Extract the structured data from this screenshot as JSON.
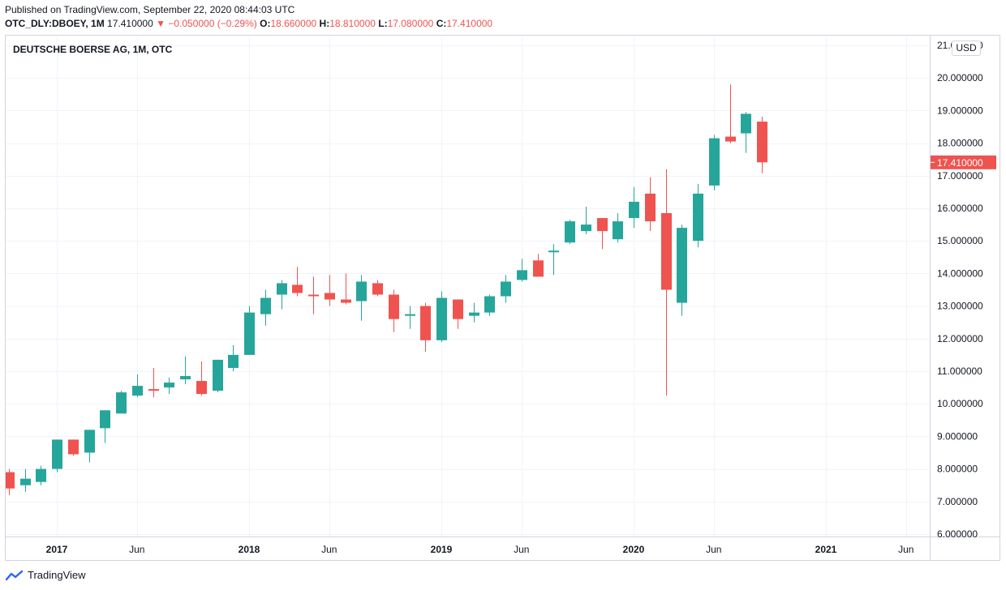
{
  "published": "Published on TradingView.com, September 22, 2020 08:44:03 UTC",
  "header": {
    "symbol": "OTC_DLY:DBOEY,",
    "interval": "1M",
    "last": "17.410000",
    "change": "▼ −0.050000 (−0.29%)",
    "o_label": "O:",
    "o": "18.660000",
    "h_label": "H:",
    "h": "18.810000",
    "l_label": "L:",
    "l": "17.080000",
    "c_label": "C:",
    "c": "17.410000"
  },
  "currency": "USD",
  "brand": "TradingView",
  "colors": {
    "up": "#26a69a",
    "down": "#ef5350",
    "grid": "#f0f3fa",
    "text": "#131722"
  },
  "chart_data": {
    "type": "candlestick",
    "title": "DEUTSCHE BOERSE AG, 1M, OTC",
    "ylim": [
      6,
      21
    ],
    "y_ticks": [
      6,
      7,
      8,
      9,
      10,
      11,
      12,
      13,
      14,
      15,
      16,
      17,
      18,
      19,
      20,
      21
    ],
    "y_tick_labels": [
      "6.000000",
      "7.000000",
      "8.000000",
      "9.000000",
      "10.000000",
      "11.000000",
      "12.000000",
      "13.000000",
      "14.000000",
      "15.000000",
      "16.000000",
      "17.000000",
      "18.000000",
      "19.000000",
      "20.000000",
      "21.000000"
    ],
    "x_ticks": [
      {
        "label": "2017",
        "date": "2017-01",
        "bold": true
      },
      {
        "label": "Jun",
        "date": "2017-06",
        "bold": false
      },
      {
        "label": "2018",
        "date": "2018-01",
        "bold": true
      },
      {
        "label": "Jun",
        "date": "2018-06",
        "bold": false
      },
      {
        "label": "2019",
        "date": "2019-01",
        "bold": true
      },
      {
        "label": "Jun",
        "date": "2019-06",
        "bold": false
      },
      {
        "label": "2020",
        "date": "2020-01",
        "bold": true
      },
      {
        "label": "Jun",
        "date": "2020-06",
        "bold": false
      },
      {
        "label": "2021",
        "date": "2021-01",
        "bold": true
      },
      {
        "label": "Jun",
        "date": "2021-06",
        "bold": false
      }
    ],
    "last_price_label": "17.410000",
    "last_price": 17.41,
    "grid": true,
    "candles": [
      {
        "date": "2016-10",
        "o": 7.9,
        "h": 8.0,
        "l": 7.2,
        "c": 7.4
      },
      {
        "date": "2016-11",
        "o": 7.5,
        "h": 8.0,
        "l": 7.3,
        "c": 7.7
      },
      {
        "date": "2016-12",
        "o": 7.6,
        "h": 8.1,
        "l": 7.5,
        "c": 8.0
      },
      {
        "date": "2017-01",
        "o": 8.0,
        "h": 8.9,
        "l": 7.9,
        "c": 8.9
      },
      {
        "date": "2017-02",
        "o": 8.9,
        "h": 8.9,
        "l": 8.4,
        "c": 8.45
      },
      {
        "date": "2017-03",
        "o": 8.5,
        "h": 9.2,
        "l": 8.2,
        "c": 9.2
      },
      {
        "date": "2017-04",
        "o": 9.25,
        "h": 9.8,
        "l": 8.8,
        "c": 9.8
      },
      {
        "date": "2017-05",
        "o": 9.7,
        "h": 10.4,
        "l": 9.7,
        "c": 10.35
      },
      {
        "date": "2017-06",
        "o": 10.25,
        "h": 10.9,
        "l": 10.2,
        "c": 10.55
      },
      {
        "date": "2017-07",
        "o": 10.45,
        "h": 11.1,
        "l": 10.2,
        "c": 10.4
      },
      {
        "date": "2017-08",
        "o": 10.5,
        "h": 10.8,
        "l": 10.3,
        "c": 10.65
      },
      {
        "date": "2017-09",
        "o": 10.75,
        "h": 11.45,
        "l": 10.6,
        "c": 10.85
      },
      {
        "date": "2017-10",
        "o": 10.7,
        "h": 11.3,
        "l": 10.25,
        "c": 10.3
      },
      {
        "date": "2017-11",
        "o": 10.4,
        "h": 11.35,
        "l": 10.35,
        "c": 11.35
      },
      {
        "date": "2017-12",
        "o": 11.1,
        "h": 11.8,
        "l": 11.0,
        "c": 11.5
      },
      {
        "date": "2018-01",
        "o": 11.5,
        "h": 13.0,
        "l": 11.5,
        "c": 12.8
      },
      {
        "date": "2018-02",
        "o": 12.75,
        "h": 13.5,
        "l": 12.4,
        "c": 13.25
      },
      {
        "date": "2018-03",
        "o": 13.35,
        "h": 13.8,
        "l": 12.9,
        "c": 13.7
      },
      {
        "date": "2018-04",
        "o": 13.65,
        "h": 14.2,
        "l": 13.3,
        "c": 13.4
      },
      {
        "date": "2018-05",
        "o": 13.35,
        "h": 13.9,
        "l": 12.75,
        "c": 13.3
      },
      {
        "date": "2018-06",
        "o": 13.4,
        "h": 13.95,
        "l": 13.0,
        "c": 13.2
      },
      {
        "date": "2018-07",
        "o": 13.2,
        "h": 14.0,
        "l": 13.05,
        "c": 13.1
      },
      {
        "date": "2018-08",
        "o": 13.15,
        "h": 13.95,
        "l": 12.55,
        "c": 13.75
      },
      {
        "date": "2018-09",
        "o": 13.7,
        "h": 13.8,
        "l": 13.3,
        "c": 13.35
      },
      {
        "date": "2018-10",
        "o": 13.35,
        "h": 13.5,
        "l": 12.2,
        "c": 12.6
      },
      {
        "date": "2018-11",
        "o": 12.7,
        "h": 13.0,
        "l": 12.3,
        "c": 12.75
      },
      {
        "date": "2018-12",
        "o": 13.0,
        "h": 13.1,
        "l": 11.6,
        "c": 11.95
      },
      {
        "date": "2019-01",
        "o": 11.95,
        "h": 13.45,
        "l": 11.9,
        "c": 13.25
      },
      {
        "date": "2019-02",
        "o": 13.2,
        "h": 13.2,
        "l": 12.3,
        "c": 12.6
      },
      {
        "date": "2019-03",
        "o": 12.7,
        "h": 13.1,
        "l": 12.5,
        "c": 12.8
      },
      {
        "date": "2019-04",
        "o": 12.8,
        "h": 13.35,
        "l": 12.7,
        "c": 13.3
      },
      {
        "date": "2019-05",
        "o": 13.3,
        "h": 13.95,
        "l": 13.1,
        "c": 13.75
      },
      {
        "date": "2019-06",
        "o": 13.8,
        "h": 14.45,
        "l": 13.75,
        "c": 14.1
      },
      {
        "date": "2019-07",
        "o": 14.4,
        "h": 14.6,
        "l": 13.9,
        "c": 13.9
      },
      {
        "date": "2019-08",
        "o": 14.65,
        "h": 14.9,
        "l": 13.95,
        "c": 14.7
      },
      {
        "date": "2019-09",
        "o": 14.95,
        "h": 15.65,
        "l": 14.9,
        "c": 15.6
      },
      {
        "date": "2019-10",
        "o": 15.3,
        "h": 16.05,
        "l": 15.2,
        "c": 15.5
      },
      {
        "date": "2019-11",
        "o": 15.7,
        "h": 15.7,
        "l": 14.75,
        "c": 15.3
      },
      {
        "date": "2019-12",
        "o": 15.05,
        "h": 15.85,
        "l": 14.95,
        "c": 15.6
      },
      {
        "date": "2020-01",
        "o": 15.7,
        "h": 16.65,
        "l": 15.4,
        "c": 16.2
      },
      {
        "date": "2020-02",
        "o": 16.45,
        "h": 16.95,
        "l": 15.3,
        "c": 15.6
      },
      {
        "date": "2020-03",
        "o": 15.85,
        "h": 17.2,
        "l": 10.25,
        "c": 13.5
      },
      {
        "date": "2020-04",
        "o": 13.1,
        "h": 15.5,
        "l": 12.7,
        "c": 15.4
      },
      {
        "date": "2020-05",
        "o": 15.0,
        "h": 16.75,
        "l": 14.8,
        "c": 16.45
      },
      {
        "date": "2020-06",
        "o": 16.7,
        "h": 18.25,
        "l": 16.55,
        "c": 18.15
      },
      {
        "date": "2020-07",
        "o": 18.2,
        "h": 19.8,
        "l": 18.0,
        "c": 18.05
      },
      {
        "date": "2020-08",
        "o": 18.3,
        "h": 18.95,
        "l": 17.7,
        "c": 18.9
      },
      {
        "date": "2020-09",
        "o": 18.66,
        "h": 18.81,
        "l": 17.08,
        "c": 17.41
      }
    ]
  }
}
